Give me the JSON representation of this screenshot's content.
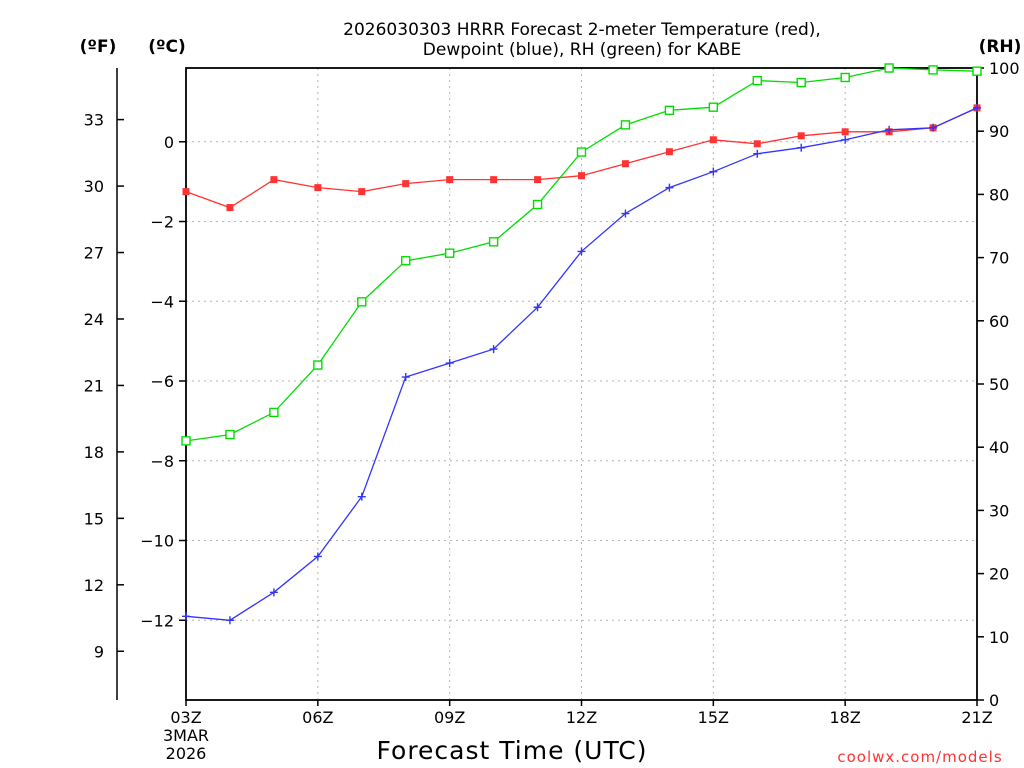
{
  "chart_data": {
    "type": "line",
    "title": [
      "2026030303 HRRR Forecast 2-meter Temperature (red),",
      "Dewpoint (blue), RH (green) for KABE"
    ],
    "xlabel": "Forecast Time (UTC)",
    "x_tick_labels": [
      "03Z",
      "06Z",
      "09Z",
      "12Z",
      "15Z",
      "18Z",
      "21Z"
    ],
    "x_start_date": [
      "3MAR",
      "2026"
    ],
    "x": [
      "03Z",
      "04Z",
      "05Z",
      "06Z",
      "07Z",
      "08Z",
      "09Z",
      "10Z",
      "11Z",
      "12Z",
      "13Z",
      "14Z",
      "15Z",
      "16Z",
      "17Z",
      "18Z",
      "19Z",
      "20Z",
      "21Z"
    ],
    "xlim": [
      3,
      21
    ],
    "axes": {
      "celsius": {
        "label": "(ºC)",
        "range": [
          -14,
          1.85
        ],
        "ticks": [
          0,
          -2,
          -4,
          -6,
          -8,
          -10,
          -12
        ]
      },
      "fahrenheit": {
        "label": "(ºF)",
        "ticks": [
          33,
          30,
          27,
          24,
          21,
          18,
          15,
          12,
          9
        ]
      },
      "rh": {
        "label": "(RH)",
        "range": [
          0,
          100
        ],
        "ticks": [
          100,
          90,
          80,
          70,
          60,
          50,
          40,
          30,
          20,
          10,
          0
        ]
      }
    },
    "grid": true,
    "series": [
      {
        "name": "Temperature",
        "axis": "celsius",
        "color": "#ff3333",
        "marker": "filled-square",
        "values": [
          -1.25,
          -1.65,
          -0.95,
          -1.15,
          -1.25,
          -1.05,
          -0.95,
          -0.95,
          -0.95,
          -0.85,
          -0.55,
          -0.25,
          0.05,
          -0.05,
          0.15,
          0.25,
          0.25,
          0.35,
          0.85
        ]
      },
      {
        "name": "Dewpoint",
        "axis": "celsius",
        "color": "#3333ff",
        "marker": "plus",
        "values": [
          -11.9,
          -12.0,
          -11.3,
          -10.4,
          -8.9,
          -5.9,
          -5.55,
          -5.2,
          -4.15,
          -2.75,
          -1.8,
          -1.15,
          -0.75,
          -0.3,
          -0.15,
          0.05,
          0.3,
          0.35,
          0.85
        ]
      },
      {
        "name": "RH",
        "axis": "rh",
        "color": "#00dd00",
        "marker": "open-square",
        "values": [
          41,
          42,
          45.5,
          53,
          63,
          69.5,
          70.7,
          72.5,
          78.4,
          86.7,
          91,
          93.3,
          93.8,
          98,
          97.7,
          98.5,
          100,
          99.7,
          99.5
        ]
      }
    ]
  },
  "units": {
    "fahrenheit": "(ºF)",
    "celsius": "(ºC)",
    "rh": "(RH)"
  },
  "credit": "coolwx.com/models"
}
